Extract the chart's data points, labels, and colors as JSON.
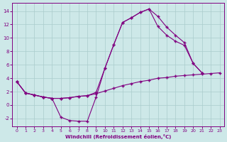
{
  "xlabel": "Windchill (Refroidissement éolien,°C)",
  "bg_color": "#cde8e8",
  "grid_color": "#aacccc",
  "line_color": "#800080",
  "xlim": [
    -0.5,
    23.5
  ],
  "ylim": [
    -3.2,
    15.2
  ],
  "xticks": [
    0,
    1,
    2,
    3,
    4,
    5,
    6,
    7,
    8,
    9,
    10,
    11,
    12,
    13,
    14,
    15,
    16,
    17,
    18,
    19,
    20,
    21,
    22,
    23
  ],
  "yticks": [
    -2,
    0,
    2,
    4,
    6,
    8,
    10,
    12,
    14
  ],
  "line1_x": [
    0,
    1,
    2,
    3,
    4,
    5,
    6,
    7,
    8,
    9,
    10,
    11,
    12,
    13,
    14,
    15,
    16,
    17,
    18,
    19,
    20,
    21
  ],
  "line1_y": [
    3.5,
    1.8,
    1.5,
    1.2,
    1.0,
    -1.8,
    -2.3,
    -2.4,
    -2.4,
    1.2,
    5.5,
    9.0,
    12.3,
    13.0,
    13.8,
    14.3,
    13.2,
    11.6,
    10.4,
    9.3,
    6.2,
    4.8
  ],
  "line2_x": [
    0,
    1,
    2,
    3,
    4,
    5,
    6,
    7,
    8,
    9,
    10,
    11,
    12,
    13,
    14,
    15,
    16,
    17,
    18,
    19,
    20,
    21,
    22,
    23
  ],
  "line2_y": [
    3.5,
    1.8,
    1.5,
    1.2,
    1.0,
    1.0,
    1.1,
    1.3,
    1.4,
    1.7,
    2.1,
    2.5,
    2.9,
    3.2,
    3.5,
    3.7,
    4.0,
    4.1,
    4.3,
    4.4,
    4.5,
    4.6,
    4.7,
    4.8
  ],
  "line3_x": [
    0,
    1,
    2,
    3,
    4,
    5,
    6,
    7,
    8,
    9,
    10,
    11,
    12,
    13,
    14,
    15,
    16,
    17,
    18,
    19,
    20,
    21,
    22,
    23
  ],
  "line3_y": [
    3.5,
    1.8,
    1.5,
    1.2,
    1.0,
    1.0,
    1.1,
    1.3,
    1.4,
    1.9,
    5.5,
    9.0,
    12.3,
    13.0,
    13.8,
    14.3,
    11.7,
    10.4,
    9.5,
    8.9,
    6.2,
    4.8,
    null,
    null
  ]
}
